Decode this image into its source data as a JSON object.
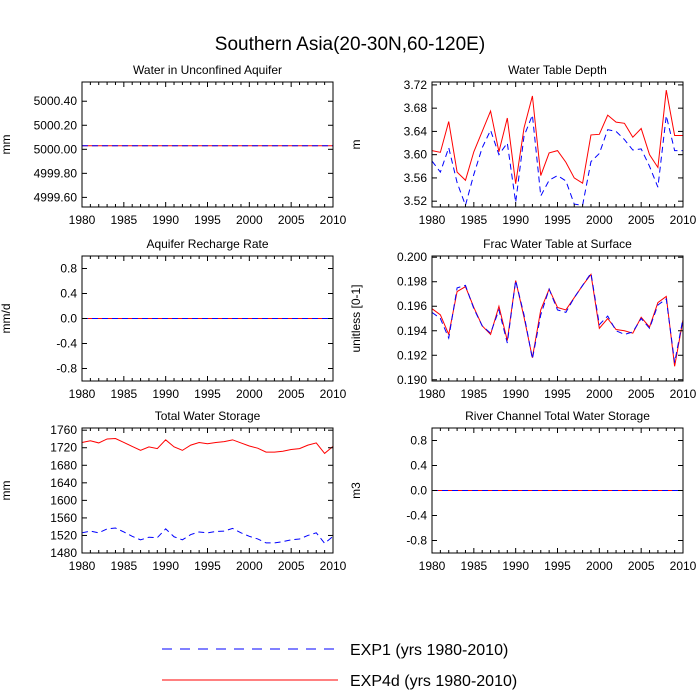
{
  "figure": {
    "title": "Southern Asia(20-30N,60-120E)"
  },
  "legend": [
    {
      "label": "EXP1 (yrs 1980-2010)",
      "color": "#0000ff",
      "dash": "dashed"
    },
    {
      "label": "EXP4d (yrs 1980-2010)",
      "color": "#ff0000",
      "dash": "solid"
    }
  ],
  "chart_data": [
    {
      "id": "wua",
      "type": "line",
      "title": "Water in Unconfined Aquifer",
      "xlabel": "",
      "ylabel": "mm",
      "xlim": [
        1980,
        2010
      ],
      "ylim": [
        4999.52,
        5000.56
      ],
      "xticks": [
        1980,
        1985,
        1990,
        1995,
        2000,
        2005,
        2010
      ],
      "yticks": [
        4999.6,
        4999.8,
        5000.0,
        5000.2,
        5000.4
      ],
      "ytick_labels": [
        "4999.60",
        "4999.80",
        "5000.00",
        "5000.20",
        "5000.40"
      ],
      "x": [
        1980,
        1981,
        1982,
        1983,
        1984,
        1985,
        1986,
        1987,
        1988,
        1989,
        1990,
        1991,
        1992,
        1993,
        1994,
        1995,
        1996,
        1997,
        1998,
        1999,
        2000,
        2001,
        2002,
        2003,
        2004,
        2005,
        2006,
        2007,
        2008,
        2009,
        2010
      ],
      "series": [
        {
          "name": "EXP4d",
          "color": "#ff0000",
          "dash": "solid",
          "values": [
            5000.03,
            5000.03,
            5000.03,
            5000.03,
            5000.03,
            5000.03,
            5000.03,
            5000.03,
            5000.03,
            5000.03,
            5000.03,
            5000.03,
            5000.03,
            5000.03,
            5000.03,
            5000.03,
            5000.03,
            5000.03,
            5000.03,
            5000.03,
            5000.03,
            5000.03,
            5000.03,
            5000.03,
            5000.03,
            5000.03,
            5000.03,
            5000.03,
            5000.03,
            5000.03,
            5000.03
          ]
        },
        {
          "name": "EXP1",
          "color": "#0000ff",
          "dash": "dashed",
          "values": [
            5000.03,
            5000.03,
            5000.03,
            5000.03,
            5000.03,
            5000.03,
            5000.03,
            5000.03,
            5000.03,
            5000.03,
            5000.03,
            5000.03,
            5000.03,
            5000.03,
            5000.03,
            5000.03,
            5000.03,
            5000.03,
            5000.03,
            5000.03,
            5000.03,
            5000.03,
            5000.03,
            5000.03,
            5000.03,
            5000.03,
            5000.03,
            5000.03,
            5000.03,
            5000.03,
            5000.03
          ]
        }
      ]
    },
    {
      "id": "wtd",
      "type": "line",
      "title": "Water Table Depth",
      "xlabel": "",
      "ylabel": "m",
      "xlim": [
        1980,
        2010
      ],
      "ylim": [
        3.51,
        3.725
      ],
      "xticks": [
        1980,
        1985,
        1990,
        1995,
        2000,
        2005,
        2010
      ],
      "yticks": [
        3.52,
        3.56,
        3.6,
        3.64,
        3.68,
        3.72
      ],
      "ytick_labels": [
        "3.52",
        "3.56",
        "3.60",
        "3.64",
        "3.68",
        "3.72"
      ],
      "x": [
        1980,
        1981,
        1982,
        1983,
        1984,
        1985,
        1986,
        1987,
        1988,
        1989,
        1990,
        1991,
        1992,
        1993,
        1994,
        1995,
        1996,
        1997,
        1998,
        1999,
        2000,
        2001,
        2002,
        2003,
        2004,
        2005,
        2006,
        2007,
        2008,
        2009,
        2010
      ],
      "series": [
        {
          "name": "EXP4d",
          "color": "#ff0000",
          "dash": "solid",
          "values": [
            3.607,
            3.604,
            3.657,
            3.57,
            3.556,
            3.605,
            3.64,
            3.675,
            3.605,
            3.663,
            3.55,
            3.646,
            3.701,
            3.564,
            3.603,
            3.607,
            3.587,
            3.56,
            3.551,
            3.634,
            3.635,
            3.668,
            3.656,
            3.654,
            3.63,
            3.645,
            3.6,
            3.578,
            3.711,
            3.633,
            3.633
          ]
        },
        {
          "name": "EXP1",
          "color": "#0000ff",
          "dash": "dashed",
          "values": [
            3.589,
            3.57,
            3.612,
            3.552,
            3.513,
            3.566,
            3.612,
            3.642,
            3.6,
            3.62,
            3.518,
            3.632,
            3.668,
            3.529,
            3.556,
            3.564,
            3.555,
            3.515,
            3.513,
            3.588,
            3.602,
            3.643,
            3.64,
            3.626,
            3.608,
            3.61,
            3.58,
            3.544,
            3.667,
            3.607,
            3.607
          ]
        }
      ]
    },
    {
      "id": "arr",
      "type": "line",
      "title": "Aquifer Recharge Rate",
      "xlabel": "",
      "ylabel": "mm/d",
      "xlim": [
        1980,
        2010
      ],
      "ylim": [
        -1.0,
        1.0
      ],
      "xticks": [
        1980,
        1985,
        1990,
        1995,
        2000,
        2005,
        2010
      ],
      "yticks": [
        -0.8,
        -0.4,
        0.0,
        0.4,
        0.8
      ],
      "ytick_labels": [
        "-0.8",
        "-0.4",
        "0.0",
        "0.4",
        "0.8"
      ],
      "x": [
        1980,
        1981,
        1982,
        1983,
        1984,
        1985,
        1986,
        1987,
        1988,
        1989,
        1990,
        1991,
        1992,
        1993,
        1994,
        1995,
        1996,
        1997,
        1998,
        1999,
        2000,
        2001,
        2002,
        2003,
        2004,
        2005,
        2006,
        2007,
        2008,
        2009,
        2010
      ],
      "series": [
        {
          "name": "EXP4d",
          "color": "#ff0000",
          "dash": "solid",
          "values": [
            0,
            0,
            0,
            0,
            0,
            0,
            0,
            0,
            0,
            0,
            0,
            0,
            0,
            0,
            0,
            0,
            0,
            0,
            0,
            0,
            0,
            0,
            0,
            0,
            0,
            0,
            0,
            0,
            0,
            0,
            0
          ]
        },
        {
          "name": "EXP1",
          "color": "#0000ff",
          "dash": "dashed",
          "values": [
            0,
            0,
            0,
            0,
            0,
            0,
            0,
            0,
            0,
            0,
            0,
            0,
            0,
            0,
            0,
            0,
            0,
            0,
            0,
            0,
            0,
            0,
            0,
            0,
            0,
            0,
            0,
            0,
            0,
            0,
            0
          ]
        }
      ]
    },
    {
      "id": "fwt",
      "type": "line",
      "title": "Frac Water Table at Surface",
      "xlabel": "",
      "ylabel": "unitless [0-1]",
      "xlim": [
        1980,
        2010
      ],
      "ylim": [
        0.1899,
        0.2001
      ],
      "xticks": [
        1980,
        1985,
        1990,
        1995,
        2000,
        2005,
        2010
      ],
      "yticks": [
        0.19,
        0.192,
        0.194,
        0.196,
        0.198,
        0.2
      ],
      "ytick_labels": [
        "0.190",
        "0.192",
        "0.194",
        "0.196",
        "0.198",
        "0.200"
      ],
      "x": [
        1980,
        1981,
        1982,
        1983,
        1984,
        1985,
        1986,
        1987,
        1988,
        1989,
        1990,
        1991,
        1992,
        1993,
        1994,
        1995,
        1996,
        1997,
        1998,
        1999,
        2000,
        2001,
        2002,
        2003,
        2004,
        2005,
        2006,
        2007,
        2008,
        2009,
        2010
      ],
      "series": [
        {
          "name": "EXP4d",
          "color": "#ff0000",
          "dash": "solid",
          "values": [
            0.1958,
            0.1953,
            0.1937,
            0.1972,
            0.1976,
            0.1959,
            0.1944,
            0.1937,
            0.196,
            0.1932,
            0.1981,
            0.1951,
            0.1918,
            0.1957,
            0.1974,
            0.1959,
            0.1957,
            0.1967,
            0.1977,
            0.1986,
            0.1942,
            0.195,
            0.1941,
            0.194,
            0.1938,
            0.1951,
            0.1943,
            0.1963,
            0.1968,
            0.1911,
            0.1949
          ]
        },
        {
          "name": "EXP1",
          "color": "#0000ff",
          "dash": "dashed",
          "values": [
            0.1955,
            0.195,
            0.1934,
            0.1975,
            0.1977,
            0.1958,
            0.1944,
            0.1938,
            0.1957,
            0.193,
            0.1981,
            0.1953,
            0.1917,
            0.1953,
            0.1974,
            0.1957,
            0.1955,
            0.1967,
            0.1977,
            0.1987,
            0.1945,
            0.1952,
            0.194,
            0.1937,
            0.1939,
            0.195,
            0.1942,
            0.1961,
            0.1966,
            0.1914,
            0.195
          ]
        }
      ]
    },
    {
      "id": "tws",
      "type": "line",
      "title": "Total Water Storage",
      "xlabel": "",
      "ylabel": "mm",
      "xlim": [
        1980,
        2010
      ],
      "ylim": [
        1480,
        1765
      ],
      "xticks": [
        1980,
        1985,
        1990,
        1995,
        2000,
        2005,
        2010
      ],
      "yticks": [
        1480,
        1520,
        1560,
        1600,
        1640,
        1680,
        1720,
        1760
      ],
      "ytick_labels": [
        "1480",
        "1520",
        "1560",
        "1600",
        "1640",
        "1680",
        "1720",
        "1760"
      ],
      "x": [
        1980,
        1981,
        1982,
        1983,
        1984,
        1985,
        1986,
        1987,
        1988,
        1989,
        1990,
        1991,
        1992,
        1993,
        1994,
        1995,
        1996,
        1997,
        1998,
        1999,
        2000,
        2001,
        2002,
        2003,
        2004,
        2005,
        2006,
        2007,
        2008,
        2009,
        2010
      ],
      "series": [
        {
          "name": "EXP4d",
          "color": "#ff0000",
          "dash": "solid",
          "values": [
            1732,
            1736,
            1731,
            1740,
            1741,
            1732,
            1723,
            1714,
            1722,
            1718,
            1738,
            1722,
            1714,
            1726,
            1732,
            1729,
            1732,
            1734,
            1738,
            1731,
            1724,
            1719,
            1710,
            1710,
            1712,
            1716,
            1718,
            1726,
            1731,
            1707,
            1723
          ]
        },
        {
          "name": "EXP1",
          "color": "#0000ff",
          "dash": "dashed",
          "values": [
            1526,
            1530,
            1526,
            1535,
            1537,
            1528,
            1518,
            1510,
            1516,
            1515,
            1535,
            1517,
            1510,
            1522,
            1528,
            1526,
            1529,
            1530,
            1536,
            1526,
            1518,
            1512,
            1503,
            1503,
            1506,
            1510,
            1512,
            1520,
            1526,
            1502,
            1518
          ]
        }
      ]
    },
    {
      "id": "rct",
      "type": "line",
      "title": "River Channel Total Water Storage",
      "xlabel": "",
      "ylabel": "m3",
      "xlim": [
        1980,
        2010
      ],
      "ylim": [
        -1.0,
        1.0
      ],
      "xticks": [
        1980,
        1985,
        1990,
        1995,
        2000,
        2005,
        2010
      ],
      "yticks": [
        -0.8,
        -0.4,
        0.0,
        0.4,
        0.8
      ],
      "ytick_labels": [
        "-0.8",
        "-0.4",
        "0.0",
        "0.4",
        "0.8"
      ],
      "x": [
        1980,
        1981,
        1982,
        1983,
        1984,
        1985,
        1986,
        1987,
        1988,
        1989,
        1990,
        1991,
        1992,
        1993,
        1994,
        1995,
        1996,
        1997,
        1998,
        1999,
        2000,
        2001,
        2002,
        2003,
        2004,
        2005,
        2006,
        2007,
        2008,
        2009,
        2010
      ],
      "series": [
        {
          "name": "EXP4d",
          "color": "#ff0000",
          "dash": "solid",
          "values": [
            0,
            0,
            0,
            0,
            0,
            0,
            0,
            0,
            0,
            0,
            0,
            0,
            0,
            0,
            0,
            0,
            0,
            0,
            0,
            0,
            0,
            0,
            0,
            0,
            0,
            0,
            0,
            0,
            0,
            0,
            0
          ]
        },
        {
          "name": "EXP1",
          "color": "#0000ff",
          "dash": "dashed",
          "values": [
            0,
            0,
            0,
            0,
            0,
            0,
            0,
            0,
            0,
            0,
            0,
            0,
            0,
            0,
            0,
            0,
            0,
            0,
            0,
            0,
            0,
            0,
            0,
            0,
            0,
            0,
            0,
            0,
            0,
            0,
            0
          ]
        }
      ]
    }
  ]
}
